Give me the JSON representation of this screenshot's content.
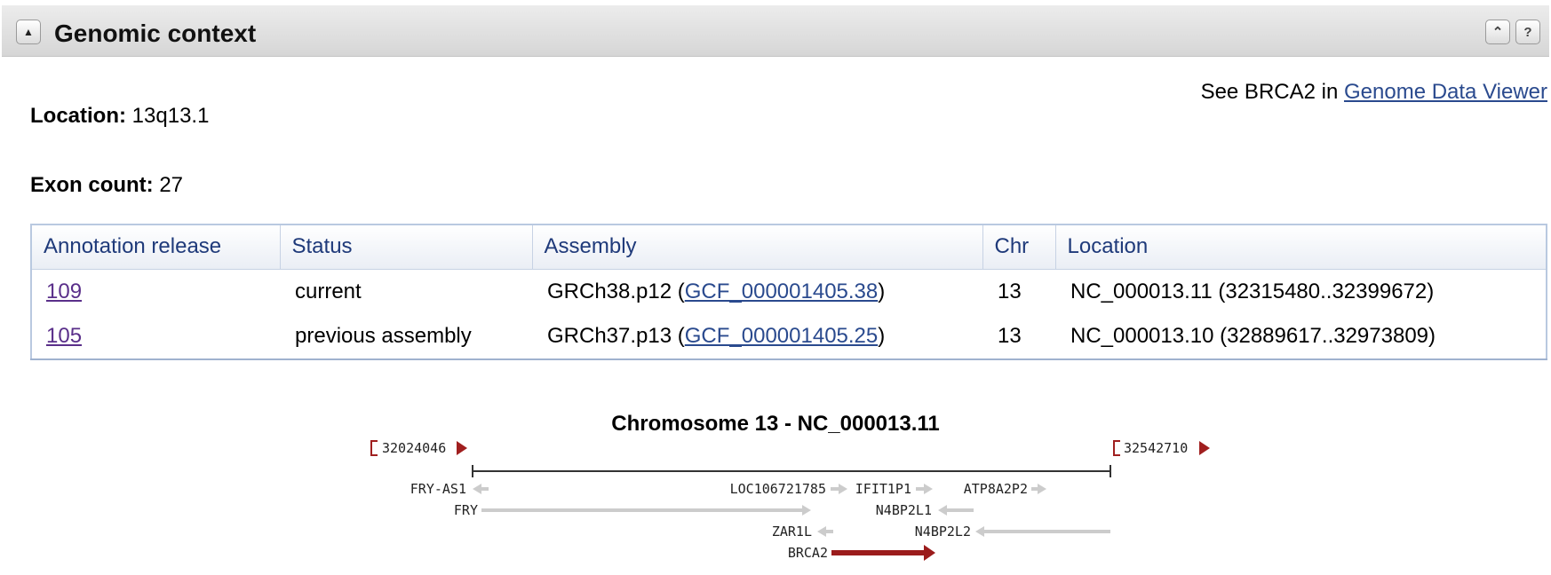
{
  "header": {
    "title": "Genomic context",
    "collapse_icon": "triangle-up-icon",
    "icons": [
      "double-chevron-up-icon",
      "help-icon"
    ]
  },
  "location": {
    "label": "Location:",
    "value": "13q13.1"
  },
  "exon_count": {
    "label": "Exon count:",
    "value": "27"
  },
  "see_link": {
    "prefix": "See BRCA2 in",
    "link_text": "Genome Data Viewer"
  },
  "table": {
    "headers": [
      "Annotation release",
      "Status",
      "Assembly",
      "Chr",
      "Location"
    ],
    "rows": [
      {
        "release": "109",
        "status": "current",
        "assembly_prefix": "GRCh38.p12 (",
        "assembly_link": "GCF_000001405.38",
        "assembly_suffix": ")",
        "chr": "13",
        "location": "NC_000013.11 (32315480..32399672)"
      },
      {
        "release": "105",
        "status": "previous assembly",
        "assembly_prefix": "GRCh37.p13 (",
        "assembly_link": "GCF_000001405.25",
        "assembly_suffix": ")",
        "chr": "13",
        "location": "NC_000013.10 (32889617..32973809)"
      }
    ]
  },
  "genome_view": {
    "title": "Chromosome 13 - NC_000013.11",
    "start_coord": "32024046",
    "end_coord": "32542710",
    "genes": [
      {
        "name": "FRY-AS1",
        "strand": "minus"
      },
      {
        "name": "LOC106721785",
        "strand": "plus"
      },
      {
        "name": "IFIT1P1",
        "strand": "plus"
      },
      {
        "name": "ATP8A2P2",
        "strand": "plus"
      },
      {
        "name": "FRY",
        "strand": "plus"
      },
      {
        "name": "N4BP2L1",
        "strand": "minus"
      },
      {
        "name": "ZAR1L",
        "strand": "minus"
      },
      {
        "name": "N4BP2L2",
        "strand": "minus"
      },
      {
        "name": "BRCA2",
        "strand": "plus",
        "highlight": true
      }
    ],
    "colors": {
      "highlight": "#9b1c1c",
      "gene": "#cccccc",
      "axis": "#333333",
      "marker": "#a01f1f"
    }
  }
}
